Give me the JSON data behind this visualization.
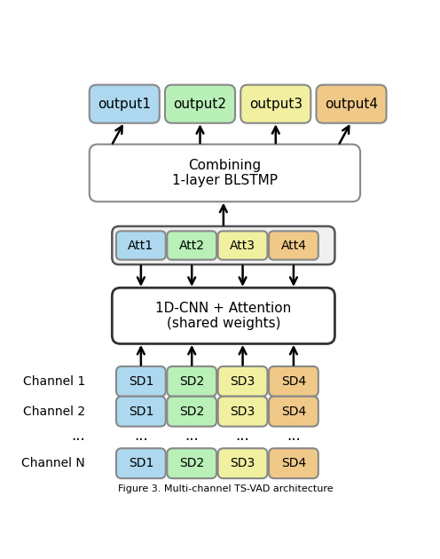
{
  "output_boxes": [
    {
      "label": "output1",
      "color": "#add8f0",
      "edge_color": "#888888"
    },
    {
      "label": "output2",
      "color": "#b8f0b8",
      "edge_color": "#888888"
    },
    {
      "label": "output3",
      "color": "#f0f0a0",
      "edge_color": "#888888"
    },
    {
      "label": "output4",
      "color": "#f0c888",
      "edge_color": "#888888"
    }
  ],
  "att_boxes": [
    {
      "label": "Att1",
      "color": "#add8f0",
      "edge_color": "#888888"
    },
    {
      "label": "Att2",
      "color": "#b8f0b8",
      "edge_color": "#888888"
    },
    {
      "label": "Att3",
      "color": "#f0f0a0",
      "edge_color": "#888888"
    },
    {
      "label": "Att4",
      "color": "#f0c888",
      "edge_color": "#888888"
    }
  ],
  "sd_colors": [
    {
      "color": "#add8f0",
      "edge_color": "#888888"
    },
    {
      "color": "#b8f0b8",
      "edge_color": "#888888"
    },
    {
      "color": "#f0f0a0",
      "edge_color": "#888888"
    },
    {
      "color": "#f0c888",
      "edge_color": "#888888"
    }
  ],
  "combining_label": "Combining\n1-layer BLSTMP",
  "cnn_label": "1D-CNN + Attention\n(shared weights)",
  "caption": "Figure 3. Multi-channel TS-VAD architecture",
  "background": "#ffffff"
}
